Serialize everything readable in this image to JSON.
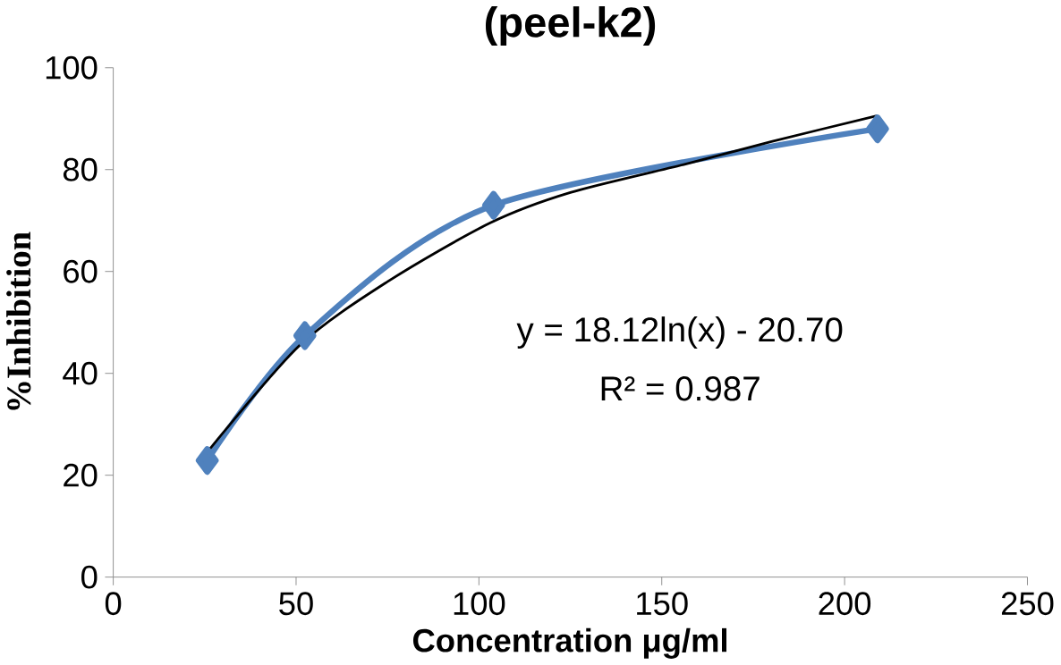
{
  "chart_data": {
    "type": "line",
    "title": "(peel-k2)",
    "xlabel": "Concentration μg/ml",
    "ylabel": "%Inhibition",
    "xlim": [
      0,
      250
    ],
    "xticks": [
      0,
      50,
      100,
      150,
      200,
      250
    ],
    "ylim": [
      0,
      100
    ],
    "yticks": [
      0,
      20,
      40,
      60,
      80,
      100
    ],
    "marker": "diamond",
    "series": [
      {
        "color": "#4f81bd",
        "x": [
          25.7,
          52.4,
          104,
          209
        ],
        "values": [
          22.9,
          47.4,
          73,
          88
        ]
      },
      {
        "type": "line",
        "marker": "none",
        "color": "#000000",
        "x": [
          26,
          51,
          75,
          103,
          125,
          156,
          180,
          209
        ],
        "values": [
          24.8,
          45.5,
          58,
          69.5,
          75.5,
          81,
          85.5,
          90.6
        ]
      }
    ],
    "annotations": [
      "y = 18.12ln(x) - 20.70",
      "R² = 0.987"
    ]
  }
}
